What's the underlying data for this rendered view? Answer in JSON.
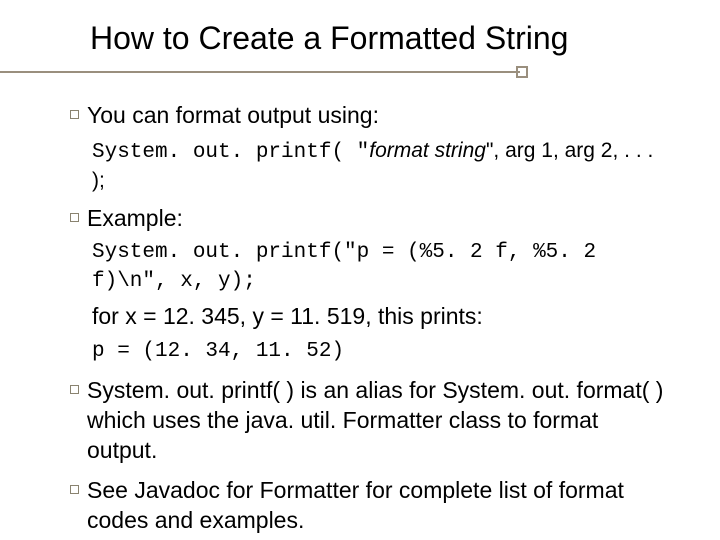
{
  "title": "How to Create a Formatted String",
  "colors": {
    "rule": "#9a8f7e",
    "bullet_border": "#8a8370",
    "text": "#000000",
    "background": "#ffffff"
  },
  "typography": {
    "title_fontsize": 32,
    "body_fontsize": 23,
    "code_fontsize": 21,
    "body_font": "Arial",
    "code_font": "Courier New"
  },
  "bullets": {
    "b1": {
      "text": "You can format output using:",
      "code_prefix": "System. out. printf( \"",
      "code_italic": "format string",
      "code_suffix": "\", arg 1, arg 2, . . . );"
    },
    "b2": {
      "text": "Example:",
      "code": "System. out. printf(\"p = (%5. 2 f, %5. 2 f)\\n\", x, y);",
      "sub": "for x = 12. 345, y = 11. 519, this prints:",
      "result": "p = (12. 34, 11. 52)"
    },
    "b3": {
      "text": "System. out. printf( ) is an alias for System. out. format( ) which uses the java. util. Formatter class to format output."
    },
    "b4": {
      "text": "See Javadoc for Formatter for complete list of format codes and examples."
    }
  }
}
